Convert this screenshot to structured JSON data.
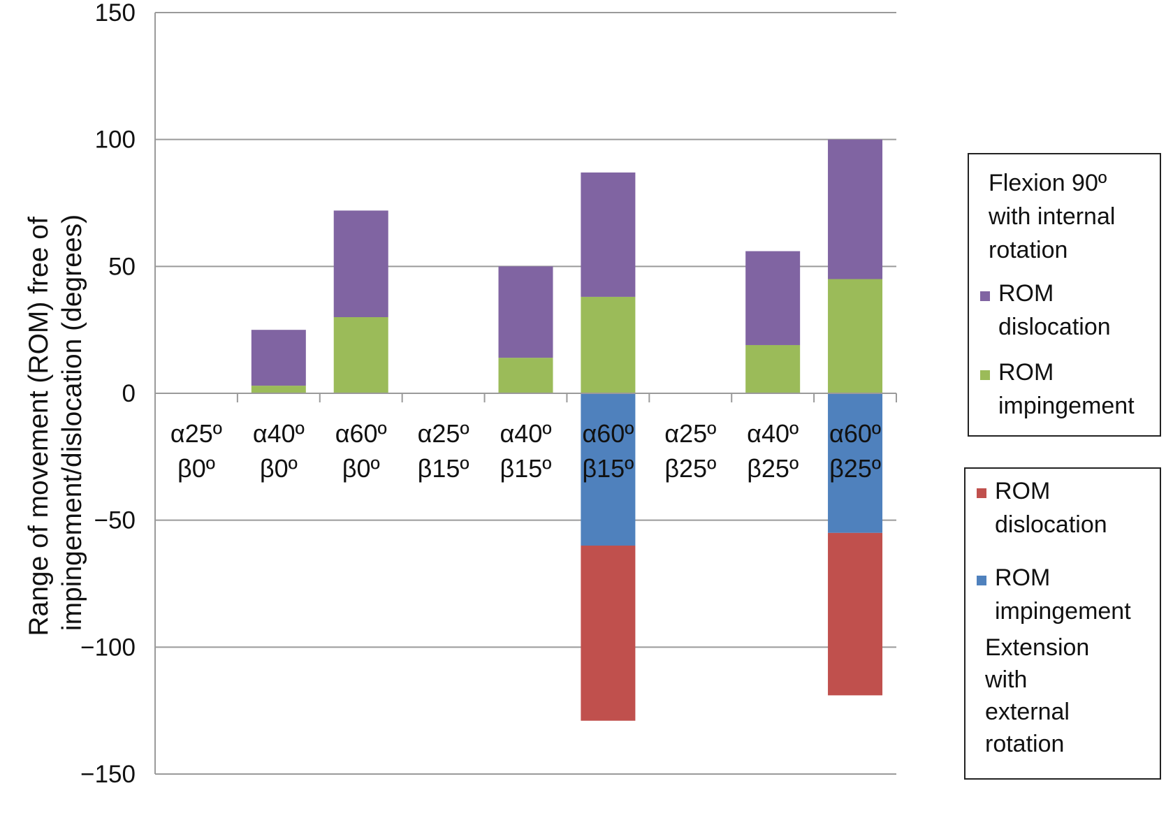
{
  "chart_data": {
    "type": "bar",
    "stacked": true,
    "ylabel": "Range of movement (ROM) free of impingement/dislocation (degrees)",
    "ylim": [
      -150,
      150
    ],
    "yticks": [
      150,
      100,
      50,
      0,
      -50,
      -100,
      -150
    ],
    "ytick_labels": [
      "150",
      "100",
      "50",
      "0",
      "−50",
      "−100",
      "−150"
    ],
    "grid": true,
    "categories": [
      [
        "α25º",
        "β0º"
      ],
      [
        "α40º",
        "β0º"
      ],
      [
        "α60º",
        "β0º"
      ],
      [
        "α25º",
        "β15º"
      ],
      [
        "α40º",
        "β15º"
      ],
      [
        "α60º",
        "β15º"
      ],
      [
        "α25º",
        "β25º"
      ],
      [
        "α40º",
        "β25º"
      ],
      [
        "α60º",
        "β25º"
      ]
    ],
    "series": [
      {
        "name": "ROM impingement",
        "group": "Flexion 90º with internal rotation",
        "color": "#9bbb59",
        "values": [
          0,
          3,
          30,
          0,
          14,
          38,
          0,
          19,
          45
        ]
      },
      {
        "name": "ROM dislocation",
        "group": "Flexion 90º with internal rotation",
        "color": "#8064a2",
        "values": [
          0,
          22,
          42,
          0,
          36,
          49,
          0,
          37,
          55
        ]
      },
      {
        "name": "ROM impingement",
        "group": "Extension with external rotation",
        "color": "#4f81bd",
        "values": [
          0,
          0,
          0,
          0,
          0,
          -60,
          0,
          0,
          -55
        ]
      },
      {
        "name": "ROM dislocation",
        "group": "Extension with external rotation",
        "color": "#c0504d",
        "values": [
          0,
          0,
          0,
          0,
          0,
          -69,
          0,
          0,
          -64
        ]
      }
    ],
    "legend": {
      "placement": "right",
      "flexion": {
        "title": [
          "Flexion 90º",
          "with internal",
          "rotation"
        ],
        "items": [
          {
            "label": [
              "ROM",
              "dislocation"
            ],
            "color": "#8064a2"
          },
          {
            "label": [
              "ROM",
              "impingement"
            ],
            "color": "#9bbb59"
          }
        ]
      },
      "extension": {
        "items": [
          {
            "label": [
              "ROM",
              "dislocation"
            ],
            "color": "#c0504d"
          },
          {
            "label": [
              "ROM",
              "impingement"
            ],
            "color": "#4f81bd"
          }
        ],
        "title": [
          "Extension",
          "with",
          "external",
          "rotation"
        ]
      }
    }
  }
}
